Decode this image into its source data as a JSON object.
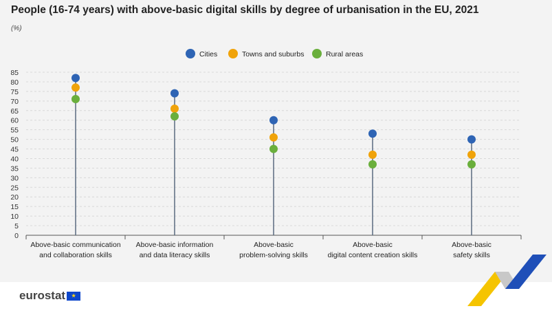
{
  "title": "People (16-74 years) with above-basic digital skills by degree of urbanisation in the EU, 2021",
  "unit": "(%)",
  "logo": "eurostat",
  "chart_data": {
    "type": "dot-plot",
    "title": "People (16-74 years) with above-basic digital skills by degree of urbanisation in the EU, 2021",
    "ylabel": "(%)",
    "ylim": [
      0,
      85
    ],
    "yticks": [
      0,
      5,
      10,
      15,
      20,
      25,
      30,
      35,
      40,
      45,
      50,
      55,
      60,
      65,
      70,
      75,
      80,
      85
    ],
    "grid": true,
    "legend": "top-center",
    "categories": [
      [
        "Above-basic communication",
        "and collaboration skills"
      ],
      [
        "Above-basic information",
        "and data literacy skills"
      ],
      [
        "Above-basic",
        "problem-solving skills"
      ],
      [
        "Above-basic",
        "digital content creation skills"
      ],
      [
        "Above-basic",
        "safety skills"
      ]
    ],
    "series": [
      {
        "name": "Cities",
        "color": "#2e64b4",
        "values": [
          82,
          74,
          60,
          53,
          50
        ]
      },
      {
        "name": "Towns and suburbs",
        "color": "#f0a30a",
        "values": [
          77,
          66,
          51,
          42,
          42
        ]
      },
      {
        "name": "Rural areas",
        "color": "#6aaf3c",
        "values": [
          71,
          62,
          45,
          37,
          37
        ]
      }
    ]
  }
}
